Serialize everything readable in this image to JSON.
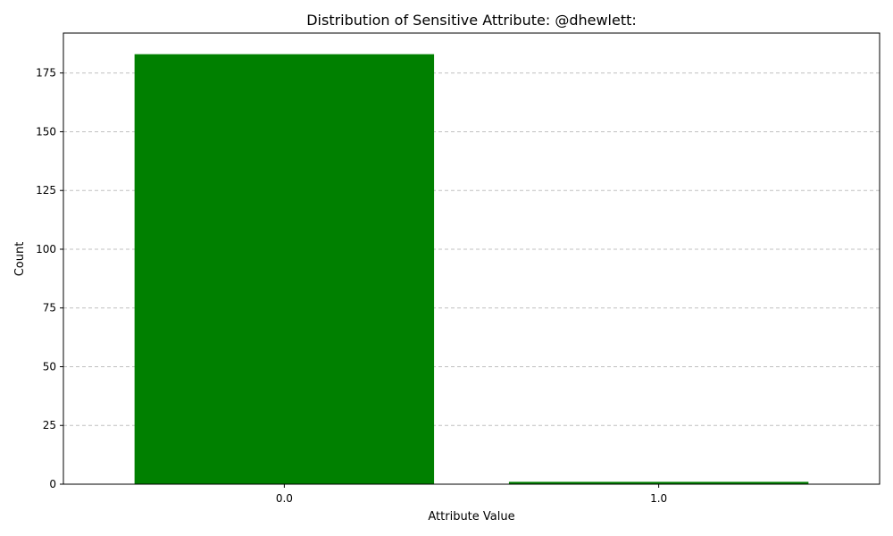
{
  "chart_data": {
    "type": "bar",
    "title": "Distribution of Sensitive Attribute: @dhewlett:",
    "xlabel": "Attribute Value",
    "ylabel": "Count",
    "categories": [
      "0.0",
      "1.0"
    ],
    "values": [
      183,
      1
    ],
    "ylim": [
      0,
      192
    ],
    "yticks": [
      0,
      25,
      50,
      75,
      100,
      125,
      150,
      175
    ],
    "grid": "y-dashed",
    "legend": "none",
    "bar_color": "#008000",
    "grid_color": "#c0c0c0"
  }
}
